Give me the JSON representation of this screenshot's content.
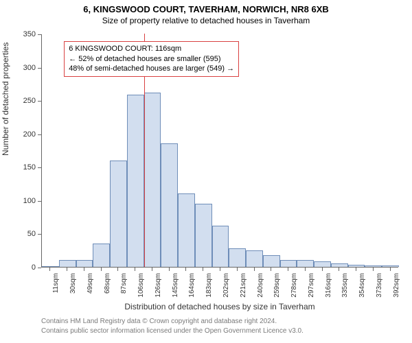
{
  "titles": {
    "main": "6, KINGSWOOD COURT, TAVERHAM, NORWICH, NR8 6XB",
    "sub": "Size of property relative to detached houses in Taverham"
  },
  "chart": {
    "type": "histogram",
    "ylabel": "Number of detached properties",
    "xlabel": "Distribution of detached houses by size in Taverham",
    "ylim": [
      0,
      350
    ],
    "ytick_step": 50,
    "yticks": [
      0,
      50,
      100,
      150,
      200,
      250,
      300,
      350
    ],
    "xticks_labels": [
      "11sqm",
      "30sqm",
      "49sqm",
      "68sqm",
      "87sqm",
      "106sqm",
      "126sqm",
      "145sqm",
      "164sqm",
      "183sqm",
      "202sqm",
      "221sqm",
      "240sqm",
      "259sqm",
      "278sqm",
      "297sqm",
      "316sqm",
      "335sqm",
      "354sqm",
      "373sqm",
      "392sqm"
    ],
    "bar_values": [
      0,
      10,
      10,
      35,
      160,
      258,
      262,
      185,
      110,
      95,
      62,
      28,
      25,
      18,
      10,
      10,
      8,
      5,
      3,
      2,
      2
    ],
    "bar_fill": "#d2deef",
    "bar_stroke": "#6e8db8",
    "bar_stroke_width": 1,
    "background_color": "#ffffff",
    "axis_color": "#666666",
    "label_fontsize": 11,
    "title_fontsize": 13,
    "reference_line": {
      "value_label": "116sqm",
      "bin_index_after": 5.5,
      "color": "#d94040",
      "width": 1
    },
    "annotation": {
      "border_color": "#d94040",
      "lines": [
        "6 KINGSWOOD COURT: 116sqm",
        "← 52% of detached houses are smaller (595)",
        "48% of semi-detached houses are larger (549) →"
      ],
      "pos_bin_index": 1.3,
      "pos_y_value": 340
    }
  },
  "attribution": {
    "color": "#7a7a7a",
    "line1": "Contains HM Land Registry data © Crown copyright and database right 2024.",
    "line2": "Contains public sector information licensed under the Open Government Licence v3.0."
  }
}
